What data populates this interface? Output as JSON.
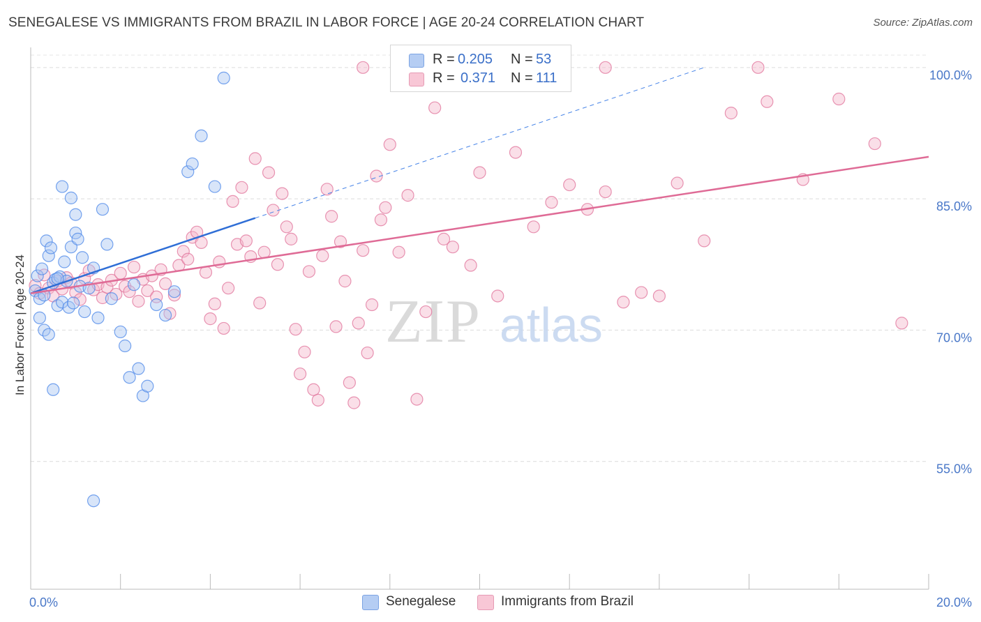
{
  "title": "SENEGALESE VS IMMIGRANTS FROM BRAZIL IN LABOR FORCE | AGE 20-24 CORRELATION CHART",
  "source": "Source: ZipAtlas.com",
  "watermark": {
    "zip": "ZIP",
    "atlas": "atlas"
  },
  "chart_data": {
    "type": "scatter",
    "title": "SENEGALESE VS IMMIGRANTS FROM BRAZIL IN LABOR FORCE | AGE 20-24 CORRELATION CHART",
    "xlabel": "",
    "ylabel": "In Labor Force | Age 20-24",
    "xlim": [
      0,
      20
    ],
    "ylim": [
      40.4,
      101.5
    ],
    "x_tick_labels": [
      "0.0%",
      "20.0%"
    ],
    "y_ticks": [
      55,
      70,
      85,
      100
    ],
    "y_tick_labels": [
      "55.0%",
      "70.0%",
      "85.0%",
      "100.0%"
    ],
    "grid": "horizontal dashed",
    "legend_placement": "top-center",
    "series": [
      {
        "name": "Senegalese",
        "color": "#4a86e8",
        "fill": "#a9c6f2",
        "R": "0.205",
        "N": "53",
        "trend": {
          "x": [
            0,
            5
          ],
          "y": [
            74.2,
            82.8
          ],
          "extended_to": {
            "x": 15,
            "y": 100
          }
        },
        "points": [
          [
            0.1,
            74.5
          ],
          [
            0.15,
            76.2
          ],
          [
            0.2,
            73.6
          ],
          [
            0.25,
            77.0
          ],
          [
            0.3,
            74.0
          ],
          [
            0.35,
            80.2
          ],
          [
            0.4,
            78.5
          ],
          [
            0.45,
            79.4
          ],
          [
            0.5,
            75.4
          ],
          [
            0.55,
            75.8
          ],
          [
            0.6,
            72.8
          ],
          [
            0.65,
            76.1
          ],
          [
            0.7,
            73.2
          ],
          [
            0.75,
            77.8
          ],
          [
            0.8,
            75.6
          ],
          [
            0.85,
            72.6
          ],
          [
            0.9,
            79.5
          ],
          [
            0.95,
            73.1
          ],
          [
            1.0,
            81.1
          ],
          [
            1.05,
            80.4
          ],
          [
            1.1,
            75.0
          ],
          [
            1.15,
            78.3
          ],
          [
            1.2,
            72.1
          ],
          [
            1.3,
            74.8
          ],
          [
            1.4,
            77.1
          ],
          [
            1.5,
            71.4
          ],
          [
            1.6,
            83.8
          ],
          [
            1.7,
            79.8
          ],
          [
            1.8,
            73.6
          ],
          [
            2.0,
            69.8
          ],
          [
            2.1,
            68.2
          ],
          [
            2.2,
            64.6
          ],
          [
            2.3,
            75.2
          ],
          [
            2.4,
            65.6
          ],
          [
            2.5,
            62.5
          ],
          [
            2.6,
            63.6
          ],
          [
            2.8,
            72.9
          ],
          [
            3.0,
            71.7
          ],
          [
            3.2,
            74.4
          ],
          [
            3.5,
            88.1
          ],
          [
            3.6,
            89.0
          ],
          [
            3.8,
            92.2
          ],
          [
            4.1,
            86.4
          ],
          [
            4.3,
            98.8
          ],
          [
            0.2,
            71.4
          ],
          [
            0.3,
            70.0
          ],
          [
            0.4,
            69.5
          ],
          [
            0.5,
            63.2
          ],
          [
            0.6,
            75.9
          ],
          [
            0.7,
            86.4
          ],
          [
            0.9,
            85.1
          ],
          [
            1.0,
            83.2
          ],
          [
            1.4,
            50.5
          ]
        ]
      },
      {
        "name": "Immigrants from Brazil",
        "color": "#e0729a",
        "fill": "#f5b9cc",
        "R": "0.371",
        "N": "111",
        "trend": {
          "x": [
            0,
            20
          ],
          "y": [
            74.2,
            89.8
          ]
        },
        "points": [
          [
            0.1,
            75.1
          ],
          [
            0.2,
            74.2
          ],
          [
            0.3,
            76.3
          ],
          [
            0.4,
            74.8
          ],
          [
            0.5,
            73.9
          ],
          [
            0.6,
            75.6
          ],
          [
            0.7,
            74.7
          ],
          [
            0.8,
            76.0
          ],
          [
            0.9,
            75.4
          ],
          [
            1.0,
            74.3
          ],
          [
            1.1,
            73.5
          ],
          [
            1.2,
            75.9
          ],
          [
            1.3,
            76.8
          ],
          [
            1.4,
            74.6
          ],
          [
            1.5,
            75.2
          ],
          [
            1.6,
            73.7
          ],
          [
            1.7,
            74.9
          ],
          [
            1.8,
            75.7
          ],
          [
            1.9,
            74.1
          ],
          [
            2.0,
            76.5
          ],
          [
            2.1,
            75.0
          ],
          [
            2.2,
            74.4
          ],
          [
            2.3,
            77.2
          ],
          [
            2.4,
            73.3
          ],
          [
            2.5,
            75.8
          ],
          [
            2.6,
            74.5
          ],
          [
            2.7,
            76.2
          ],
          [
            2.8,
            73.8
          ],
          [
            2.9,
            76.9
          ],
          [
            3.0,
            75.3
          ],
          [
            3.1,
            71.9
          ],
          [
            3.2,
            74.0
          ],
          [
            3.3,
            77.4
          ],
          [
            3.4,
            79.0
          ],
          [
            3.5,
            78.1
          ],
          [
            3.6,
            80.6
          ],
          [
            3.7,
            81.2
          ],
          [
            3.8,
            80.0
          ],
          [
            3.9,
            76.6
          ],
          [
            4.0,
            71.3
          ],
          [
            4.1,
            73.0
          ],
          [
            4.2,
            77.8
          ],
          [
            4.3,
            70.2
          ],
          [
            4.4,
            74.8
          ],
          [
            4.5,
            84.7
          ],
          [
            4.6,
            79.8
          ],
          [
            4.7,
            86.3
          ],
          [
            4.8,
            80.2
          ],
          [
            4.9,
            78.4
          ],
          [
            5.0,
            89.6
          ],
          [
            5.1,
            73.1
          ],
          [
            5.2,
            78.9
          ],
          [
            5.3,
            88.0
          ],
          [
            5.4,
            83.7
          ],
          [
            5.5,
            77.5
          ],
          [
            5.6,
            85.6
          ],
          [
            5.7,
            81.8
          ],
          [
            5.8,
            80.4
          ],
          [
            5.9,
            70.1
          ],
          [
            6.0,
            65.0
          ],
          [
            6.1,
            67.5
          ],
          [
            6.2,
            76.7
          ],
          [
            6.3,
            63.2
          ],
          [
            6.4,
            62.0
          ],
          [
            6.5,
            78.5
          ],
          [
            6.6,
            86.1
          ],
          [
            6.7,
            83.0
          ],
          [
            6.8,
            70.4
          ],
          [
            6.9,
            80.1
          ],
          [
            7.0,
            75.6
          ],
          [
            7.1,
            64.0
          ],
          [
            7.2,
            61.7
          ],
          [
            7.3,
            70.8
          ],
          [
            7.4,
            79.1
          ],
          [
            7.5,
            67.4
          ],
          [
            7.6,
            72.9
          ],
          [
            7.7,
            87.6
          ],
          [
            7.8,
            82.6
          ],
          [
            7.9,
            84.0
          ],
          [
            8.0,
            91.2
          ],
          [
            8.2,
            78.9
          ],
          [
            8.4,
            85.4
          ],
          [
            8.6,
            62.1
          ],
          [
            8.8,
            72.1
          ],
          [
            9.0,
            95.4
          ],
          [
            9.2,
            80.4
          ],
          [
            9.4,
            79.5
          ],
          [
            9.8,
            77.4
          ],
          [
            10.0,
            88.0
          ],
          [
            10.4,
            73.9
          ],
          [
            10.8,
            90.3
          ],
          [
            11.2,
            81.8
          ],
          [
            11.6,
            84.6
          ],
          [
            12.0,
            86.6
          ],
          [
            12.4,
            83.8
          ],
          [
            12.8,
            85.8
          ],
          [
            13.2,
            73.2
          ],
          [
            13.6,
            74.3
          ],
          [
            14.0,
            73.9
          ],
          [
            14.4,
            86.8
          ],
          [
            15.0,
            80.2
          ],
          [
            15.6,
            94.8
          ],
          [
            16.4,
            96.1
          ],
          [
            17.2,
            87.2
          ],
          [
            18.0,
            96.4
          ],
          [
            18.8,
            91.3
          ],
          [
            19.4,
            70.8
          ],
          [
            7.4,
            100
          ],
          [
            9.8,
            100
          ],
          [
            12.8,
            100
          ],
          [
            16.2,
            100
          ]
        ]
      }
    ]
  },
  "legend": {
    "rows": [
      {
        "r_label": "R =",
        "r_value": "0.205",
        "n_label": "N =",
        "n_value": "53"
      },
      {
        "r_label": "R =",
        "r_value": "0.371",
        "n_label": "N =",
        "n_value": "111"
      }
    ]
  },
  "bottom_legend": [
    "Senegalese",
    "Immigrants from Brazil"
  ]
}
